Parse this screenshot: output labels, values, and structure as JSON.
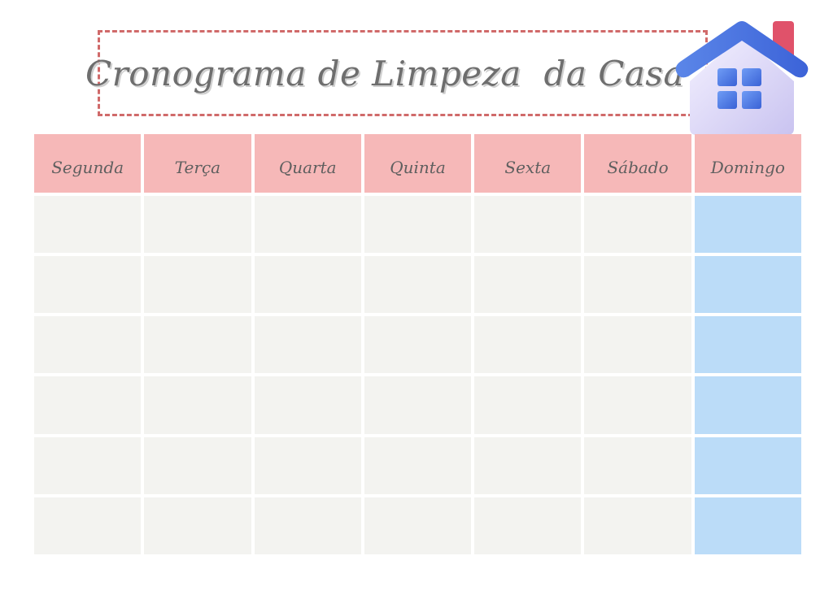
{
  "title": "Cronograma de Limpeza  da Casa",
  "days": [
    "Segunda",
    "Terça",
    "Quarta",
    "Quinta",
    "Sexta",
    "Sábado",
    "Domingo"
  ],
  "row_count": 6,
  "icons": {
    "house": "house-icon"
  },
  "colors": {
    "header": "#f6b8b8",
    "cell": "#f3f3f0",
    "sunday_cell": "#bbdcf8",
    "title_border": "#d06a6a",
    "text": "#6e6e6e"
  }
}
